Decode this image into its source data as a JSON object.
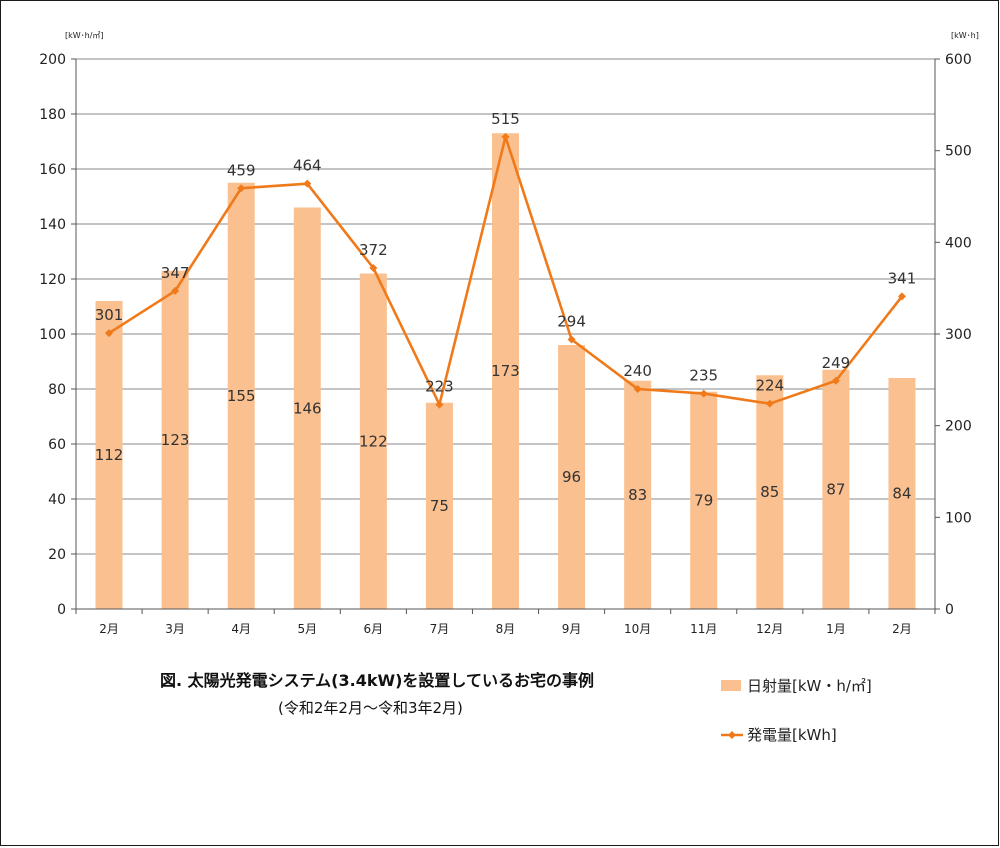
{
  "chart_data": {
    "type": "bar",
    "categories": [
      "2月",
      "3月",
      "4月",
      "5月",
      "6月",
      "7月",
      "8月",
      "9月",
      "10月",
      "11月",
      "12月",
      "1月",
      "2月"
    ],
    "series": [
      {
        "name": "日射量[kW・h/㎡]",
        "type": "bar",
        "axis": "left",
        "color": "#FAC090",
        "values": [
          112,
          123,
          155,
          146,
          122,
          75,
          173,
          96,
          83,
          79,
          85,
          87,
          84
        ]
      },
      {
        "name": "発電量[kWh]",
        "type": "line",
        "axis": "right",
        "color": "#F07A1A",
        "values": [
          301,
          347,
          459,
          464,
          372,
          223,
          515,
          294,
          240,
          235,
          224,
          249,
          341
        ]
      }
    ],
    "y_left": {
      "unit": "[kW･h/㎡]",
      "ylim": [
        0,
        200
      ],
      "ticks": [
        "0",
        "20",
        "40",
        "60",
        "80",
        "100",
        "120",
        "140",
        "160",
        "180",
        "200"
      ]
    },
    "y_right": {
      "unit": "[kW･h]",
      "ylim": [
        0,
        600
      ],
      "ticks": [
        "0",
        "100",
        "200",
        "300",
        "400",
        "500",
        "600"
      ]
    },
    "title": "図. 太陽光発電システム(3.4kW)を設置しているお宅の事例",
    "subtitle": "(令和2年2月〜令和3年2月)",
    "grid": true,
    "legend_position": "bottom-right"
  }
}
